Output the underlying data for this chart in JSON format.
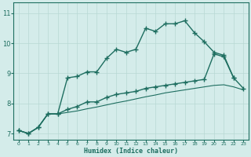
{
  "xlabel": "Humidex (Indice chaleur)",
  "bg_color": "#d4ecea",
  "grid_color": "#b8d8d4",
  "line_color": "#1e6e60",
  "xlim_min": -0.5,
  "xlim_max": 23.5,
  "ylim_min": 6.8,
  "ylim_max": 11.35,
  "xticks": [
    0,
    1,
    2,
    3,
    4,
    5,
    6,
    7,
    8,
    9,
    10,
    11,
    12,
    13,
    14,
    15,
    16,
    17,
    18,
    19,
    20,
    21,
    22,
    23
  ],
  "yticks": [
    7,
    8,
    9,
    10,
    11
  ],
  "line1_x": [
    0,
    1,
    2,
    3,
    4,
    5,
    6,
    7,
    8,
    9,
    10,
    11,
    12,
    13,
    14,
    15,
    16,
    17,
    18,
    19,
    20,
    21,
    22
  ],
  "line1_y": [
    7.1,
    7.0,
    7.2,
    7.65,
    7.65,
    8.85,
    8.9,
    9.05,
    9.05,
    9.5,
    9.8,
    9.7,
    9.8,
    10.5,
    10.4,
    10.65,
    10.65,
    10.75,
    10.35,
    10.05,
    9.7,
    9.6,
    8.85
  ],
  "line2_x": [
    0,
    1,
    2,
    3,
    4,
    5,
    6,
    7,
    8,
    9,
    10,
    11,
    12,
    13,
    14,
    15,
    16,
    17,
    18,
    19,
    20,
    21,
    22,
    23
  ],
  "line2_y": [
    7.1,
    7.0,
    7.2,
    7.65,
    7.65,
    7.8,
    7.9,
    8.05,
    8.05,
    8.2,
    8.3,
    8.35,
    8.4,
    8.5,
    8.55,
    8.6,
    8.65,
    8.7,
    8.75,
    8.8,
    9.65,
    9.55,
    8.85,
    8.5
  ],
  "line3_x": [
    0,
    1,
    2,
    3,
    4,
    5,
    6,
    7,
    8,
    9,
    10,
    11,
    12,
    13,
    14,
    15,
    16,
    17,
    18,
    19,
    20,
    21,
    22,
    23
  ],
  "line3_y": [
    7.1,
    7.0,
    7.2,
    7.65,
    7.65,
    7.7,
    7.75,
    7.82,
    7.88,
    7.95,
    8.02,
    8.08,
    8.15,
    8.22,
    8.28,
    8.35,
    8.4,
    8.45,
    8.5,
    8.55,
    8.6,
    8.62,
    8.55,
    8.45
  ]
}
